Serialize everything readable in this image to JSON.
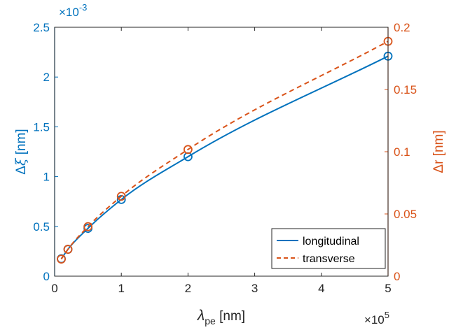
{
  "chart_data": {
    "type": "line",
    "x": [
      10000,
      20000,
      50000,
      100000,
      200000,
      500000
    ],
    "x_tick_labels": [
      "0",
      "1",
      "2",
      "3",
      "4",
      "5"
    ],
    "x_exponent": {
      "base": "×10",
      "power": "5"
    },
    "xlabel": {
      "symbol": "λ",
      "subscript": "pe",
      "unit": " [nm]"
    },
    "xlim": [
      0,
      500000
    ],
    "y_left": {
      "label": {
        "prefix": "Δ",
        "symbol": "ξ",
        "unit": " [nm]"
      },
      "lim": [
        0,
        0.0025
      ],
      "tick_labels": [
        "0",
        "0.5",
        "1",
        "1.5",
        "2",
        "2.5"
      ],
      "exponent": {
        "base": "×10",
        "power": "-3"
      },
      "color": "#0072BD"
    },
    "y_right": {
      "label": "Δr [nm]",
      "lim": [
        0,
        0.2
      ],
      "tick_labels": [
        "0",
        "0.05",
        "0.1",
        "0.15",
        "0.2"
      ],
      "color": "#D95319"
    },
    "series": [
      {
        "name": "longitudinal",
        "axis": "left",
        "style": "solid",
        "marker": "circle",
        "color": "#0072BD",
        "values": [
          0.000175,
          0.00027,
          0.00048,
          0.00077,
          0.0012,
          0.00221
        ]
      },
      {
        "name": "transverse",
        "axis": "right",
        "style": "dashed",
        "marker": "circle",
        "color": "#D95319",
        "values": [
          0.0137,
          0.0216,
          0.0398,
          0.0642,
          0.1018,
          0.1887
        ]
      }
    ],
    "grid": false,
    "legend_position": "bottom-right"
  }
}
